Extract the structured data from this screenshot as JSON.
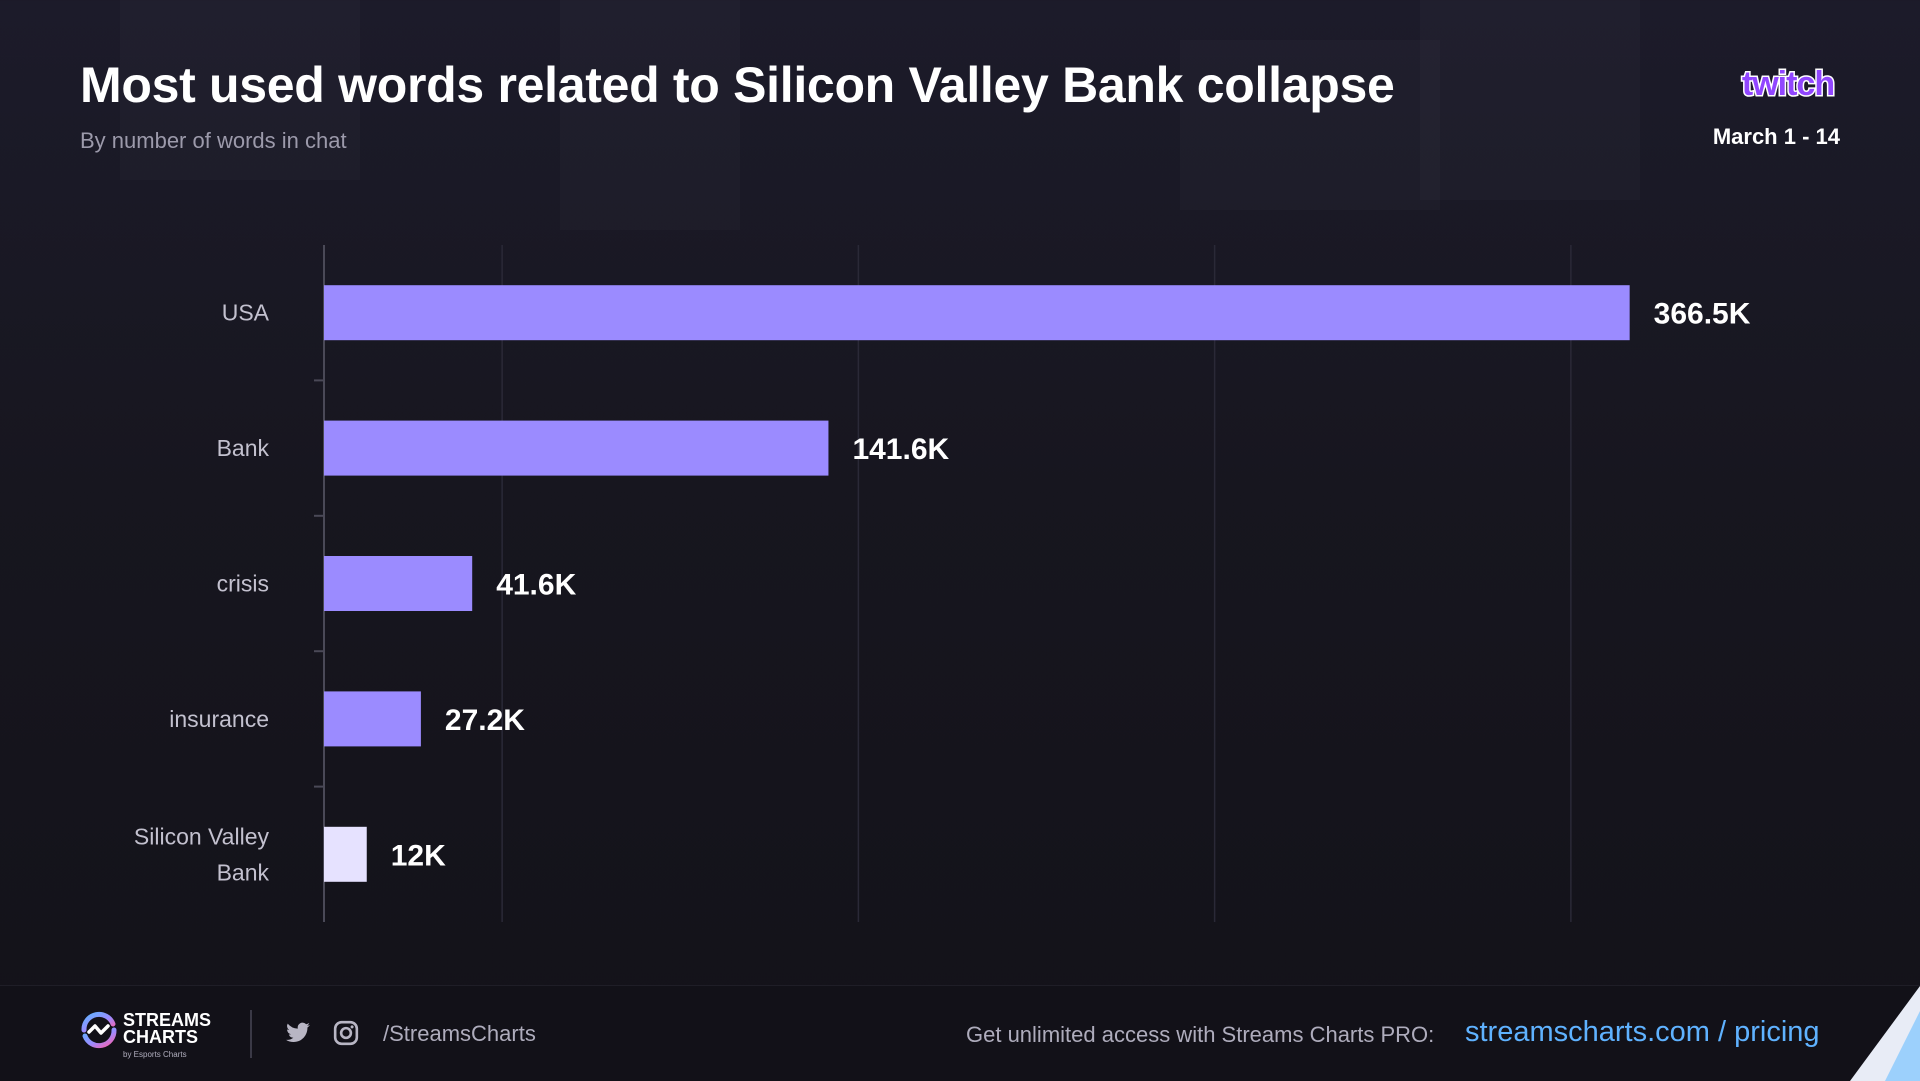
{
  "header": {
    "title": "Most used words related to Silicon Valley Bank collapse",
    "subtitle": "By number of words in chat",
    "date_range": "March 1 - 14",
    "platform": "twitch"
  },
  "chart_data": {
    "type": "bar",
    "orientation": "horizontal",
    "title": "Most used words related to Silicon Valley Bank collapse",
    "subtitle": "By number of words in chat",
    "xlabel": "",
    "ylabel": "",
    "categories": [
      "USA",
      "Bank",
      "crisis",
      "insurance",
      "Silicon Valley Bank"
    ],
    "category_lines": [
      [
        "USA"
      ],
      [
        "Bank"
      ],
      [
        "crisis"
      ],
      [
        "insurance"
      ],
      [
        "Silicon Valley",
        "Bank"
      ]
    ],
    "values": [
      366500,
      141600,
      41600,
      27200,
      12000
    ],
    "value_labels": [
      "366.5K",
      "141.6K",
      "41.6K",
      "27.2K",
      "12K"
    ],
    "xlim": [
      0,
      400000
    ],
    "grid": true,
    "bar_colors": [
      "#9b8bff",
      "#9b8bff",
      "#9b8bff",
      "#9b8bff",
      "#e6e2ff"
    ]
  },
  "footer": {
    "brand_line1": "STREAMS",
    "brand_line2": "CHARTS",
    "brand_sub": "by Esports Charts",
    "social_handle": "/StreamsCharts",
    "promo_text": "Get unlimited access with Streams Charts PRO:",
    "promo_link": "streamscharts.com / pricing"
  },
  "icons": {
    "twitch": "twitch-logo-icon",
    "twitter": "twitter-icon",
    "instagram": "instagram-icon",
    "brand": "streams-charts-logo-icon"
  },
  "colors": {
    "accent": "#9b8bff",
    "highlight": "#e6e2ff",
    "link": "#5fb2ff",
    "twitch": "#9146ff"
  }
}
